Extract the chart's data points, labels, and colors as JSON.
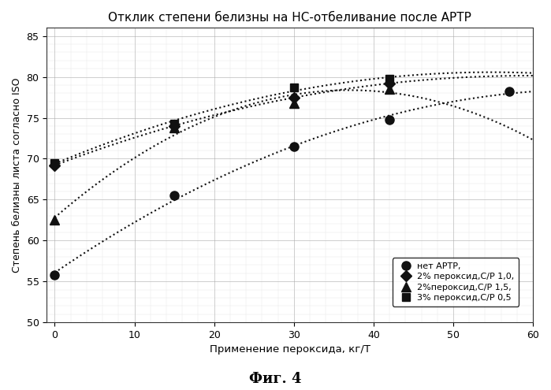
{
  "title": "Отклик степени белизны на НС-отбеливание после АРТР",
  "xlabel": "Применение пероксида, кг/Т",
  "ylabel": "Степень белизны листа согласно ISO",
  "xlim": [
    -1,
    60
  ],
  "ylim": [
    50.0,
    86.0
  ],
  "xticks": [
    0,
    10,
    20,
    30,
    40,
    50,
    60
  ],
  "yticks": [
    50.0,
    55.0,
    60.0,
    65.0,
    70.0,
    75.0,
    80.0,
    85.0
  ],
  "caption": "Фиг. 4",
  "series": [
    {
      "label": "нет АРТР,",
      "marker": "o",
      "markersize": 8,
      "color": "#111111",
      "x": [
        0,
        15,
        30,
        42,
        57
      ],
      "y": [
        55.8,
        65.5,
        71.5,
        74.8,
        78.2
      ]
    },
    {
      "label": "2% пероксид,C/P 1,0,",
      "marker": "D",
      "markersize": 7,
      "color": "#111111",
      "x": [
        0,
        15,
        30,
        42
      ],
      "y": [
        69.2,
        74.0,
        77.5,
        79.2
      ]
    },
    {
      "label": "2%пероксид,C/P 1,5,",
      "marker": "^",
      "markersize": 8,
      "color": "#111111",
      "x": [
        0,
        15,
        30,
        42
      ],
      "y": [
        62.5,
        73.8,
        76.8,
        78.5
      ]
    },
    {
      "label": "3% пероксид,C/P 0,5",
      "marker": "s",
      "markersize": 7,
      "color": "#111111",
      "x": [
        0,
        15,
        30,
        42
      ],
      "y": [
        69.5,
        74.3,
        78.7,
        79.8
      ]
    }
  ],
  "background_color": "#ffffff",
  "fig_caption_fontsize": 13,
  "title_fontsize": 11
}
